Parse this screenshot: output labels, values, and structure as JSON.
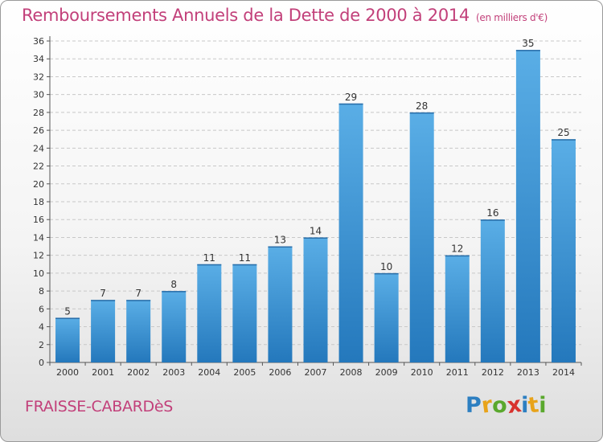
{
  "header": {
    "title": "Remboursements Annuels de la Dette de 2000 à 2014",
    "unit": "(en milliers d'€)"
  },
  "footer": {
    "commune": "FRAISSE-CABARDèS",
    "logo_text": "Proxiti",
    "logo_letter_colors": [
      "#2d7fc1",
      "#e8a31a",
      "#5aa82d",
      "#d8322e",
      "#2d7fc1",
      "#e8a31a",
      "#5aa82d"
    ]
  },
  "chart_data": {
    "type": "bar",
    "categories": [
      "2000",
      "2001",
      "2002",
      "2003",
      "2004",
      "2005",
      "2006",
      "2007",
      "2008",
      "2009",
      "2010",
      "2011",
      "2012",
      "2013",
      "2014"
    ],
    "values": [
      5,
      7,
      7,
      8,
      11,
      11,
      13,
      14,
      29,
      10,
      28,
      12,
      16,
      35,
      25
    ],
    "ylim": [
      0,
      36
    ],
    "yticks": [
      0,
      2,
      4,
      6,
      8,
      10,
      12,
      14,
      16,
      18,
      20,
      22,
      24,
      26,
      28,
      30,
      32,
      34,
      36
    ],
    "grid": "horizontal dashed",
    "bar_color": "#3e97d8",
    "bar_color_dark": "#2478bc",
    "data_labels": true
  }
}
